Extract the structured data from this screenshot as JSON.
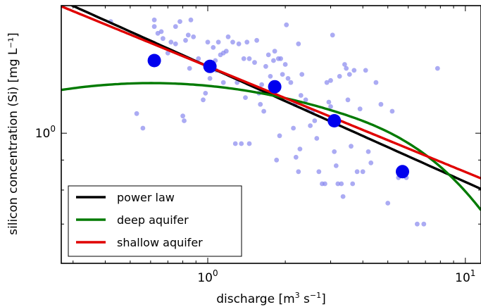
{
  "chart_data": {
    "type": "scatter",
    "xlabel_main": "discharge [m",
    "xlabel_sup": "3",
    "xlabel_tail": "  s",
    "xlabel_sup2": "−1",
    "xlabel_end": "]",
    "ylabel": "silicon concentration (Si) [mg L⁻¹]",
    "x_scale": "log",
    "y_scale": "log",
    "xlim": [
      0.27,
      11.5
    ],
    "ylim": [
      0.6,
      1.65
    ],
    "x_ticks": [
      {
        "value": 1,
        "base": "10",
        "exp": "0"
      },
      {
        "value": 10,
        "base": "10",
        "exp": "1"
      }
    ],
    "y_ticks": [
      {
        "value": 1,
        "base": "10",
        "exp": "0"
      }
    ],
    "grid": false,
    "legend_position": "bottom-left",
    "series": [
      {
        "name": "power law",
        "kind": "line",
        "color": "#000000",
        "model": "power",
        "params": {
          "a": 1.3,
          "b": -0.197
        }
      },
      {
        "name": "deep aquifer",
        "kind": "line",
        "color": "#007a00",
        "model": "deep",
        "params": {
          "x0": 3.1,
          "y0": 1.09
        }
      },
      {
        "name": "shallow aquifer",
        "kind": "line",
        "color": "#e00000",
        "model": "power",
        "params": {
          "a": 1.3,
          "b": -0.18
        }
      }
    ],
    "binned_means": {
      "color": "#0000ee",
      "points": [
        [
          0.62,
          1.33
        ],
        [
          1.02,
          1.3
        ],
        [
          1.82,
          1.2
        ],
        [
          3.1,
          1.05
        ],
        [
          5.7,
          0.86
        ]
      ]
    },
    "observations": {
      "color": "#8888ee",
      "points": [
        [
          0.42,
          1.55
        ],
        [
          0.53,
          1.08
        ],
        [
          0.56,
          1.02
        ],
        [
          0.62,
          1.56
        ],
        [
          0.62,
          1.52
        ],
        [
          0.64,
          1.48
        ],
        [
          0.66,
          1.49
        ],
        [
          0.67,
          1.45
        ],
        [
          0.7,
          1.37
        ],
        [
          0.72,
          1.43
        ],
        [
          0.75,
          1.42
        ],
        [
          0.75,
          1.52
        ],
        [
          0.78,
          1.55
        ],
        [
          0.8,
          1.07
        ],
        [
          0.81,
          1.05
        ],
        [
          0.82,
          1.44
        ],
        [
          0.84,
          1.47
        ],
        [
          0.85,
          1.29
        ],
        [
          0.88,
          1.46
        ],
        [
          0.92,
          1.34
        ],
        [
          0.96,
          1.14
        ],
        [
          0.98,
          1.17
        ],
        [
          1.0,
          1.43
        ],
        [
          1.02,
          1.24
        ],
        [
          1.03,
          1.32
        ],
        [
          1.05,
          1.4
        ],
        [
          1.07,
          1.33
        ],
        [
          1.08,
          1.28
        ],
        [
          1.1,
          1.43
        ],
        [
          1.12,
          1.36
        ],
        [
          1.15,
          1.22
        ],
        [
          1.18,
          1.38
        ],
        [
          1.2,
          1.46
        ],
        [
          1.25,
          1.43
        ],
        [
          1.28,
          0.96
        ],
        [
          1.3,
          1.22
        ],
        [
          1.32,
          1.42
        ],
        [
          1.35,
          0.96
        ],
        [
          1.38,
          1.34
        ],
        [
          1.4,
          1.15
        ],
        [
          1.42,
          1.43
        ],
        [
          1.45,
          1.34
        ],
        [
          1.45,
          0.96
        ],
        [
          1.52,
          1.32
        ],
        [
          1.55,
          1.44
        ],
        [
          1.58,
          1.17
        ],
        [
          1.6,
          1.12
        ],
        [
          1.62,
          1.21
        ],
        [
          1.65,
          1.09
        ],
        [
          1.68,
          1.3
        ],
        [
          1.72,
          1.36
        ],
        [
          1.75,
          1.25
        ],
        [
          1.8,
          1.33
        ],
        [
          1.82,
          1.38
        ],
        [
          1.85,
          0.9
        ],
        [
          1.88,
          1.34
        ],
        [
          1.9,
          0.99
        ],
        [
          1.92,
          1.34
        ],
        [
          1.95,
          1.26
        ],
        [
          2.0,
          1.31
        ],
        [
          2.02,
          1.53
        ],
        [
          2.05,
          1.24
        ],
        [
          2.1,
          1.22
        ],
        [
          2.15,
          1.02
        ],
        [
          2.18,
          1.12
        ],
        [
          2.2,
          0.91
        ],
        [
          2.25,
          0.86
        ],
        [
          2.28,
          0.94
        ],
        [
          2.3,
          1.16
        ],
        [
          2.32,
          1.26
        ],
        [
          2.4,
          1.14
        ],
        [
          2.45,
          1.1
        ],
        [
          2.5,
          1.03
        ],
        [
          2.55,
          1.09
        ],
        [
          2.6,
          1.05
        ],
        [
          2.65,
          0.98
        ],
        [
          2.7,
          0.86
        ],
        [
          2.78,
          0.82
        ],
        [
          2.85,
          0.82
        ],
        [
          2.9,
          1.22
        ],
        [
          2.95,
          1.13
        ],
        [
          3.0,
          1.11
        ],
        [
          3.05,
          1.47
        ],
        [
          3.1,
          0.93
        ],
        [
          3.15,
          0.88
        ],
        [
          3.2,
          0.82
        ],
        [
          3.25,
          1.25
        ],
        [
          3.3,
          0.82
        ],
        [
          3.35,
          0.78
        ],
        [
          3.4,
          1.31
        ],
        [
          3.45,
          1.29
        ],
        [
          3.5,
          1.14
        ],
        [
          3.55,
          1.26
        ],
        [
          3.6,
          0.95
        ],
        [
          3.65,
          0.82
        ],
        [
          3.7,
          1.28
        ],
        [
          3.8,
          0.86
        ],
        [
          3.9,
          1.1
        ],
        [
          4.0,
          0.86
        ],
        [
          4.1,
          1.28
        ],
        [
          4.2,
          0.93
        ],
        [
          4.3,
          0.89
        ],
        [
          4.5,
          1.22
        ],
        [
          4.7,
          1.12
        ],
        [
          5.0,
          0.76
        ],
        [
          5.2,
          1.09
        ],
        [
          5.5,
          0.84
        ],
        [
          5.9,
          0.84
        ],
        [
          6.5,
          0.7
        ],
        [
          6.9,
          0.7
        ],
        [
          7.8,
          1.29
        ],
        [
          3.0,
          1.23
        ],
        [
          2.25,
          1.42
        ],
        [
          1.15,
          1.37
        ],
        [
          0.86,
          1.56
        ]
      ]
    }
  }
}
